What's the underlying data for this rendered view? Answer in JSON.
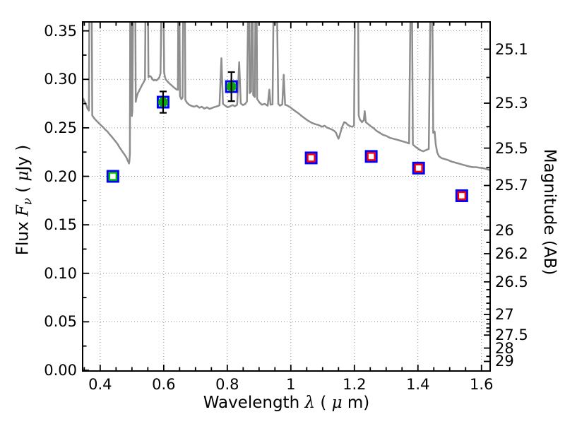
{
  "chart_data": {
    "type": "line+scatter",
    "description": "Galaxy SED: model spectrum with photometric points",
    "xlabel_parts": {
      "word": "Wavelength ",
      "lambda": "λ",
      "unit_open": " (",
      "mu": "μ",
      "unit_close": "m)"
    },
    "ylabel_parts": {
      "word": "Flux ",
      "F": "F",
      "nu": "ν",
      "unit_open": " ( ",
      "mu": "μ",
      "unit_close": "Jy )"
    },
    "right_label": "Magnitude (AB)",
    "xlim": [
      0.347,
      1.625
    ],
    "ylim_flux": [
      0,
      0.3585
    ],
    "ab_zeropoint": 23.9,
    "grid": {
      "style": "dotted",
      "on": true
    },
    "colors": {
      "spectrum": "#8d8d8d",
      "marker_edge_blue": "#0000ff",
      "marker_green": "#0da60d",
      "marker_green_square": "#00c000",
      "marker_red": "#ff0000",
      "errorbar": "#000000",
      "grid": "#909090",
      "axis": "#000000",
      "background": "#ffffff"
    },
    "x_axis": {
      "major": [
        {
          "v": 0.4,
          "label": "0.4"
        },
        {
          "v": 0.6,
          "label": "0.6"
        },
        {
          "v": 0.8,
          "label": "0.8"
        },
        {
          "v": 1.0,
          "label": "1"
        },
        {
          "v": 1.2,
          "label": "1.2"
        },
        {
          "v": 1.4,
          "label": "1.4"
        },
        {
          "v": 1.6,
          "label": "1.6"
        }
      ],
      "minor": [
        0.35,
        0.45,
        0.5,
        0.55,
        0.65,
        0.7,
        0.75,
        0.85,
        0.9,
        0.95,
        1.05,
        1.1,
        1.15,
        1.25,
        1.3,
        1.35,
        1.45,
        1.5,
        1.55
      ]
    },
    "y_axis": {
      "major": [
        {
          "v": 0.0,
          "label": "0.00"
        },
        {
          "v": 0.05,
          "label": "0.05"
        },
        {
          "v": 0.1,
          "label": "0.10"
        },
        {
          "v": 0.15,
          "label": "0.15"
        },
        {
          "v": 0.2,
          "label": "0.20"
        },
        {
          "v": 0.25,
          "label": "0.25"
        },
        {
          "v": 0.3,
          "label": "0.30"
        },
        {
          "v": 0.35,
          "label": "0.35"
        }
      ],
      "minor": [
        0.025,
        0.075,
        0.125,
        0.175,
        0.225,
        0.275,
        0.325
      ]
    },
    "right_axis": {
      "major": [
        {
          "v": 25.1,
          "label": "25.1"
        },
        {
          "v": 25.3,
          "label": "25.3"
        },
        {
          "v": 25.5,
          "label": "25.5"
        },
        {
          "v": 25.7,
          "label": "25.7"
        },
        {
          "v": 26.0,
          "label": "26"
        },
        {
          "v": 26.2,
          "label": "26.2"
        },
        {
          "v": 26.5,
          "label": "26.5"
        },
        {
          "v": 27.0,
          "label": "27"
        },
        {
          "v": 27.5,
          "label": "27.5"
        },
        {
          "v": 28.0,
          "label": "28"
        },
        {
          "v": 29.0,
          "label": "29"
        }
      ],
      "minor": [
        25.2,
        25.4,
        25.6,
        25.8,
        25.9,
        26.1,
        26.3,
        26.4,
        26.6,
        26.7,
        26.8,
        26.9,
        27.1,
        27.2,
        27.3,
        27.4,
        28.5
      ]
    },
    "photometry": [
      {
        "id": "point-0.44um",
        "x": 0.44,
        "flux": 0.2,
        "err": null,
        "marker": "open-square-green"
      },
      {
        "id": "point-0.60um",
        "x": 0.598,
        "flux": 0.2765,
        "err": 0.011,
        "marker": "filled-circle-green"
      },
      {
        "id": "point-0.81um",
        "x": 0.813,
        "flux": 0.2925,
        "err": 0.015,
        "marker": "filled-circle-green"
      },
      {
        "id": "point-1.06um",
        "x": 1.064,
        "flux": 0.219,
        "err": null,
        "marker": "open-square-red"
      },
      {
        "id": "point-1.25um",
        "x": 1.253,
        "flux": 0.2205,
        "err": null,
        "marker": "open-square-red"
      },
      {
        "id": "point-1.40um",
        "x": 1.402,
        "flux": 0.2085,
        "err": null,
        "marker": "open-square-red"
      },
      {
        "id": "point-1.54um",
        "x": 1.538,
        "flux": 0.18,
        "err": null,
        "marker": "open-square-red"
      }
    ],
    "spectrum": {
      "linewidth": 2.5,
      "offscale_value": 0.372,
      "points": [
        [
          0.347,
          0.28
        ],
        [
          0.35,
          0.2775
        ],
        [
          0.3525,
          0.2762
        ],
        [
          0.355,
          0.2742
        ],
        [
          0.3575,
          0.2725
        ],
        [
          0.36,
          0.27
        ],
        [
          0.3625,
          0.2688
        ],
        [
          0.3645,
          0.2678
        ],
        [
          0.366,
          0.372
        ],
        [
          0.3735,
          0.372
        ],
        [
          0.375,
          0.263
        ],
        [
          0.379,
          0.2608
        ],
        [
          0.384,
          0.2588
        ],
        [
          0.39,
          0.2568
        ],
        [
          0.396,
          0.2548
        ],
        [
          0.402,
          0.2528
        ],
        [
          0.409,
          0.2508
        ],
        [
          0.416,
          0.2482
        ],
        [
          0.423,
          0.2462
        ],
        [
          0.43,
          0.2432
        ],
        [
          0.4365,
          0.2408
        ],
        [
          0.443,
          0.2382
        ],
        [
          0.449,
          0.2358
        ],
        [
          0.455,
          0.2332
        ],
        [
          0.461,
          0.2298
        ],
        [
          0.4665,
          0.2272
        ],
        [
          0.4715,
          0.2248
        ],
        [
          0.476,
          0.2228
        ],
        [
          0.48,
          0.2208
        ],
        [
          0.4835,
          0.2188
        ],
        [
          0.4865,
          0.2162
        ],
        [
          0.489,
          0.2148
        ],
        [
          0.4905,
          0.2132
        ],
        [
          0.492,
          0.2152
        ],
        [
          0.4935,
          0.2232
        ],
        [
          0.4945,
          0.372
        ],
        [
          0.4985,
          0.372
        ],
        [
          0.4998,
          0.2622
        ],
        [
          0.5012,
          0.2678
        ],
        [
          0.5035,
          0.372
        ],
        [
          0.5105,
          0.372
        ],
        [
          0.512,
          0.2768
        ],
        [
          0.5145,
          0.2815
        ],
        [
          0.518,
          0.2852
        ],
        [
          0.5225,
          0.2882
        ],
        [
          0.527,
          0.2912
        ],
        [
          0.532,
          0.2942
        ],
        [
          0.537,
          0.2972
        ],
        [
          0.541,
          0.2998
        ],
        [
          0.5425,
          0.372
        ],
        [
          0.5505,
          0.372
        ],
        [
          0.552,
          0.3022
        ],
        [
          0.5555,
          0.3035
        ],
        [
          0.5595,
          0.3028
        ],
        [
          0.5635,
          0.3008
        ],
        [
          0.568,
          0.2988
        ],
        [
          0.5725,
          0.2995
        ],
        [
          0.577,
          0.2988
        ],
        [
          0.5815,
          0.3002
        ],
        [
          0.586,
          0.3018
        ],
        [
          0.59,
          0.3062
        ],
        [
          0.5925,
          0.372
        ],
        [
          0.5995,
          0.372
        ],
        [
          0.6012,
          0.3075
        ],
        [
          0.6035,
          0.3028
        ],
        [
          0.6065,
          0.2998
        ],
        [
          0.6125,
          0.2975
        ],
        [
          0.619,
          0.2955
        ],
        [
          0.6265,
          0.2932
        ],
        [
          0.634,
          0.2912
        ],
        [
          0.6405,
          0.2895
        ],
        [
          0.6445,
          0.2892
        ],
        [
          0.6458,
          0.372
        ],
        [
          0.6495,
          0.372
        ],
        [
          0.651,
          0.2828
        ],
        [
          0.6555,
          0.2795
        ],
        [
          0.6592,
          0.2812
        ],
        [
          0.661,
          0.372
        ],
        [
          0.6665,
          0.372
        ],
        [
          0.668,
          0.2788
        ],
        [
          0.6735,
          0.2758
        ],
        [
          0.68,
          0.2738
        ],
        [
          0.688,
          0.2725
        ],
        [
          0.696,
          0.2718
        ],
        [
          0.704,
          0.2728
        ],
        [
          0.712,
          0.2708
        ],
        [
          0.72,
          0.2718
        ],
        [
          0.728,
          0.2698
        ],
        [
          0.736,
          0.2712
        ],
        [
          0.744,
          0.2695
        ],
        [
          0.752,
          0.2705
        ],
        [
          0.76,
          0.2715
        ],
        [
          0.768,
          0.2722
        ],
        [
          0.7755,
          0.2732
        ],
        [
          0.7815,
          0.3218
        ],
        [
          0.7865,
          0.2748
        ],
        [
          0.7935,
          0.2728
        ],
        [
          0.801,
          0.2712
        ],
        [
          0.809,
          0.2722
        ],
        [
          0.8165,
          0.2735
        ],
        [
          0.824,
          0.2722
        ],
        [
          0.831,
          0.2738
        ],
        [
          0.8375,
          0.3178
        ],
        [
          0.8425,
          0.2752
        ],
        [
          0.849,
          0.2735
        ],
        [
          0.856,
          0.2745
        ],
        [
          0.862,
          0.2772
        ],
        [
          0.8655,
          0.372
        ],
        [
          0.869,
          0.372
        ],
        [
          0.8705,
          0.2858
        ],
        [
          0.8748,
          0.2875
        ],
        [
          0.8765,
          0.372
        ],
        [
          0.88,
          0.372
        ],
        [
          0.8815,
          0.2838
        ],
        [
          0.8868,
          0.2818
        ],
        [
          0.8885,
          0.372
        ],
        [
          0.8925,
          0.372
        ],
        [
          0.894,
          0.2798
        ],
        [
          0.901,
          0.2762
        ],
        [
          0.909,
          0.2738
        ],
        [
          0.918,
          0.2748
        ],
        [
          0.927,
          0.2728
        ],
        [
          0.9325,
          0.2895
        ],
        [
          0.936,
          0.2738
        ],
        [
          0.9425,
          0.2742
        ],
        [
          0.9455,
          0.372
        ],
        [
          0.9565,
          0.372
        ],
        [
          0.9605,
          0.2748
        ],
        [
          0.966,
          0.2728
        ],
        [
          0.973,
          0.2742
        ],
        [
          0.9775,
          0.3048
        ],
        [
          0.982,
          0.2738
        ],
        [
          0.99,
          0.2728
        ],
        [
          0.998,
          0.2712
        ],
        [
          1.006,
          0.2692
        ],
        [
          1.014,
          0.2672
        ],
        [
          1.023,
          0.2652
        ],
        [
          1.033,
          0.2625
        ],
        [
          1.044,
          0.2598
        ],
        [
          1.055,
          0.2572
        ],
        [
          1.066,
          0.2552
        ],
        [
          1.077,
          0.2538
        ],
        [
          1.088,
          0.2528
        ],
        [
          1.098,
          0.2512
        ],
        [
          1.106,
          0.2522
        ],
        [
          1.114,
          0.2502
        ],
        [
          1.122,
          0.2492
        ],
        [
          1.13,
          0.2482
        ],
        [
          1.137,
          0.2468
        ],
        [
          1.1425,
          0.2448
        ],
        [
          1.1465,
          0.2412
        ],
        [
          1.15,
          0.2388
        ],
        [
          1.1535,
          0.2422
        ],
        [
          1.158,
          0.2472
        ],
        [
          1.163,
          0.2522
        ],
        [
          1.168,
          0.2558
        ],
        [
          1.173,
          0.2552
        ],
        [
          1.179,
          0.2532
        ],
        [
          1.186,
          0.2518
        ],
        [
          1.193,
          0.2512
        ],
        [
          1.199,
          0.2522
        ],
        [
          1.2015,
          0.372
        ],
        [
          1.2115,
          0.372
        ],
        [
          1.2135,
          0.2628
        ],
        [
          1.217,
          0.2588
        ],
        [
          1.2235,
          0.2558
        ],
        [
          1.2295,
          0.2578
        ],
        [
          1.2325,
          0.2672
        ],
        [
          1.236,
          0.2558
        ],
        [
          1.2435,
          0.2538
        ],
        [
          1.251,
          0.2518
        ],
        [
          1.26,
          0.2498
        ],
        [
          1.27,
          0.2468
        ],
        [
          1.28,
          0.2448
        ],
        [
          1.29,
          0.2428
        ],
        [
          1.3,
          0.2418
        ],
        [
          1.311,
          0.2398
        ],
        [
          1.322,
          0.2388
        ],
        [
          1.333,
          0.2378
        ],
        [
          1.344,
          0.2368
        ],
        [
          1.355,
          0.2358
        ],
        [
          1.365,
          0.2348
        ],
        [
          1.372,
          0.2338
        ],
        [
          1.3765,
          0.372
        ],
        [
          1.3815,
          0.372
        ],
        [
          1.384,
          0.2328
        ],
        [
          1.391,
          0.2308
        ],
        [
          1.399,
          0.2288
        ],
        [
          1.408,
          0.2268
        ],
        [
          1.417,
          0.2258
        ],
        [
          1.426,
          0.2272
        ],
        [
          1.434,
          0.2282
        ],
        [
          1.4395,
          0.372
        ],
        [
          1.4455,
          0.372
        ],
        [
          1.448,
          0.2448
        ],
        [
          1.4525,
          0.2462
        ],
        [
          1.456,
          0.2328
        ],
        [
          1.4605,
          0.2248
        ],
        [
          1.466,
          0.2208
        ],
        [
          1.474,
          0.2188
        ],
        [
          1.484,
          0.2178
        ],
        [
          1.495,
          0.2168
        ],
        [
          1.506,
          0.2152
        ],
        [
          1.517,
          0.2142
        ],
        [
          1.528,
          0.2132
        ],
        [
          1.539,
          0.2122
        ],
        [
          1.55,
          0.2112
        ],
        [
          1.561,
          0.2102
        ],
        [
          1.572,
          0.2095
        ],
        [
          1.583,
          0.2095
        ],
        [
          1.594,
          0.2088
        ],
        [
          1.605,
          0.2085
        ],
        [
          1.615,
          0.2075
        ],
        [
          1.625,
          0.2065
        ]
      ]
    }
  }
}
